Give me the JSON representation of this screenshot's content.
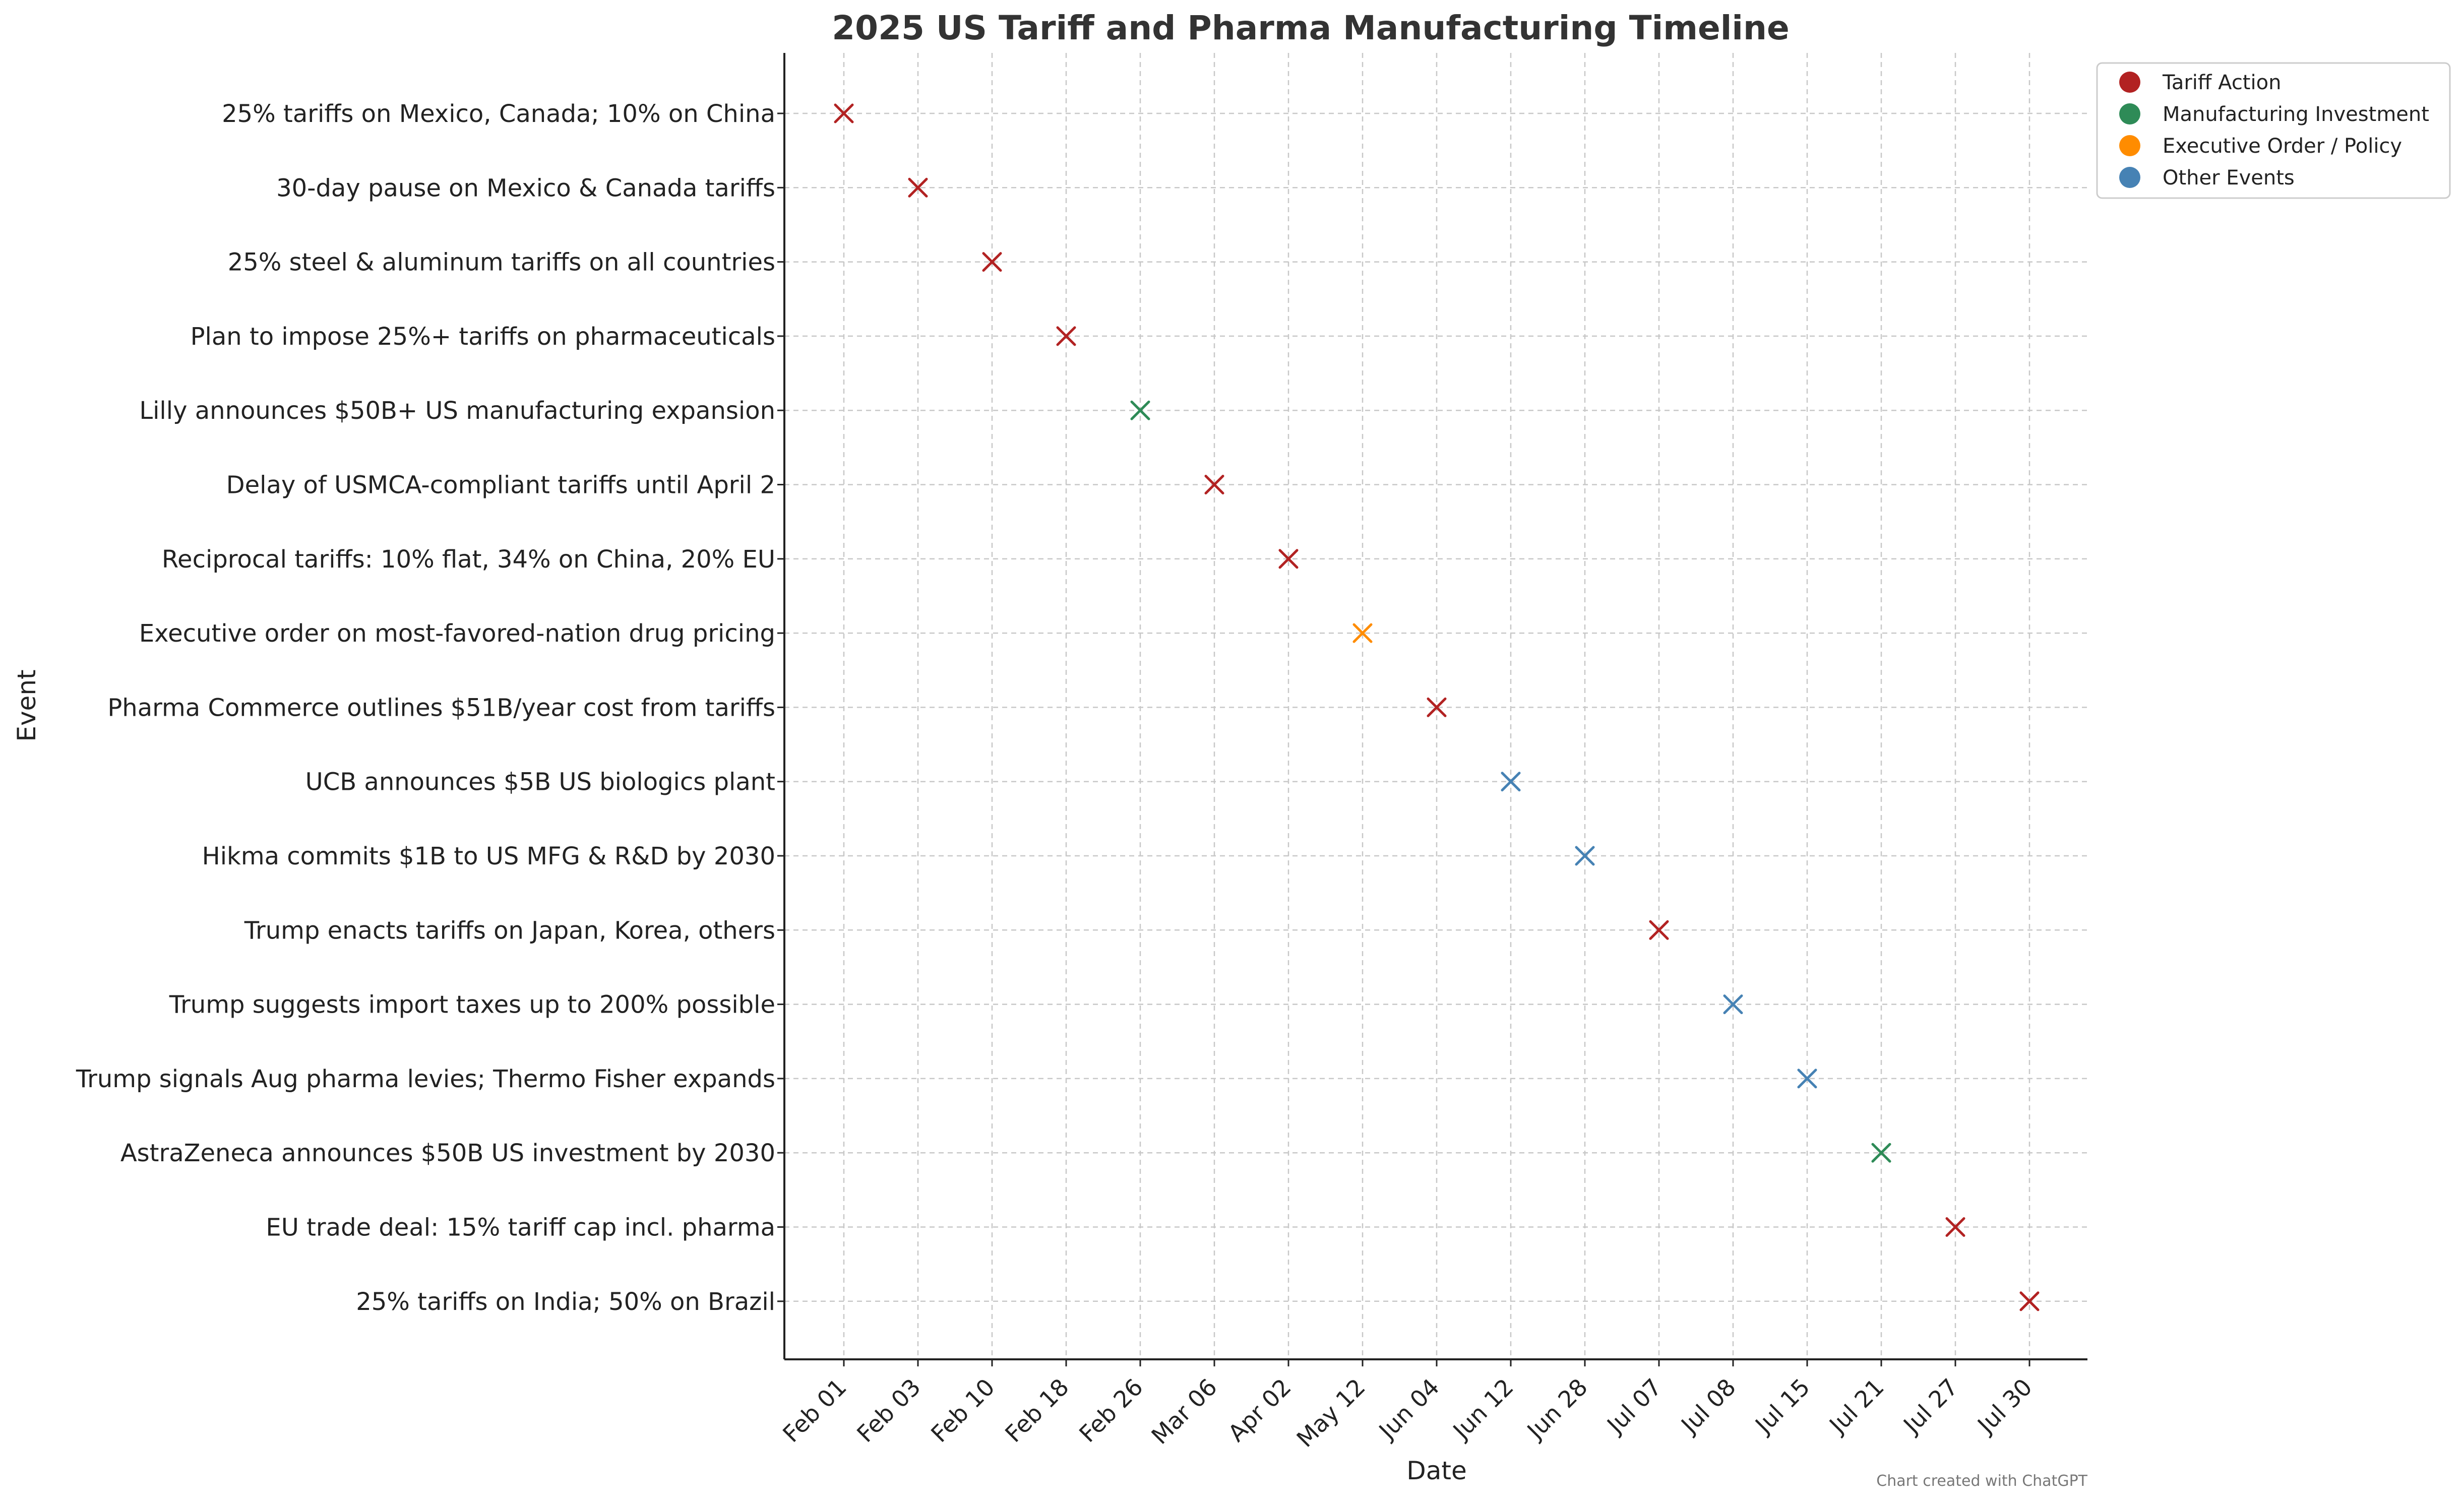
{
  "chart_data": {
    "type": "scatter",
    "title": "2025 US Tariff and Pharma Manufacturing Timeline",
    "xlabel": "Date",
    "ylabel": "Event",
    "grid": true,
    "legend_placement": "top-right-outside",
    "credit": "Chart created with ChatGPT",
    "categories_colors": {
      "Tariff Action": "#b22222",
      "Manufacturing Investment": "#2e8b57",
      "Executive Order / Policy": "#ff8c00",
      "Other Events": "#4682b4"
    },
    "legend": [
      {
        "label": "Tariff Action",
        "color": "#b22222"
      },
      {
        "label": "Manufacturing Investment",
        "color": "#2e8b57"
      },
      {
        "label": "Executive Order / Policy",
        "color": "#ff8c00"
      },
      {
        "label": "Other Events",
        "color": "#4682b4"
      }
    ],
    "points": [
      {
        "date": "Feb 01",
        "event": "25% tariffs on Mexico, Canada; 10% on China",
        "category": "Tariff Action"
      },
      {
        "date": "Feb 03",
        "event": "30-day pause on Mexico & Canada tariffs",
        "category": "Tariff Action"
      },
      {
        "date": "Feb 10",
        "event": "25% steel & aluminum tariffs on all countries",
        "category": "Tariff Action"
      },
      {
        "date": "Feb 18",
        "event": "Plan to impose 25%+ tariffs on pharmaceuticals",
        "category": "Tariff Action"
      },
      {
        "date": "Feb 26",
        "event": "Lilly announces $50B+ US manufacturing expansion",
        "category": "Manufacturing Investment"
      },
      {
        "date": "Mar 06",
        "event": "Delay of USMCA-compliant tariffs until April 2",
        "category": "Tariff Action"
      },
      {
        "date": "Apr 02",
        "event": "Reciprocal tariffs: 10% flat, 34% on China, 20% EU",
        "category": "Tariff Action"
      },
      {
        "date": "May 12",
        "event": "Executive order on most-favored-nation drug pricing",
        "category": "Executive Order / Policy"
      },
      {
        "date": "Jun 04",
        "event": "Pharma Commerce outlines $51B/year cost from tariffs",
        "category": "Tariff Action"
      },
      {
        "date": "Jun 12",
        "event": "UCB announces $5B US biologics plant",
        "category": "Other Events"
      },
      {
        "date": "Jun 28",
        "event": "Hikma commits $1B to US MFG & R&D by 2030",
        "category": "Other Events"
      },
      {
        "date": "Jul 07",
        "event": "Trump enacts tariffs on Japan, Korea, others",
        "category": "Tariff Action"
      },
      {
        "date": "Jul 08",
        "event": "Trump suggests import taxes up to 200% possible",
        "category": "Other Events"
      },
      {
        "date": "Jul 15",
        "event": "Trump signals Aug pharma levies; Thermo Fisher expands",
        "category": "Other Events"
      },
      {
        "date": "Jul 21",
        "event": "AstraZeneca announces $50B US investment by 2030",
        "category": "Manufacturing Investment"
      },
      {
        "date": "Jul 27",
        "event": "EU trade deal: 15% tariff cap incl. pharma",
        "category": "Tariff Action"
      },
      {
        "date": "Jul 30",
        "event": "25% tariffs on India; 50% on Brazil",
        "category": "Tariff Action"
      }
    ]
  }
}
